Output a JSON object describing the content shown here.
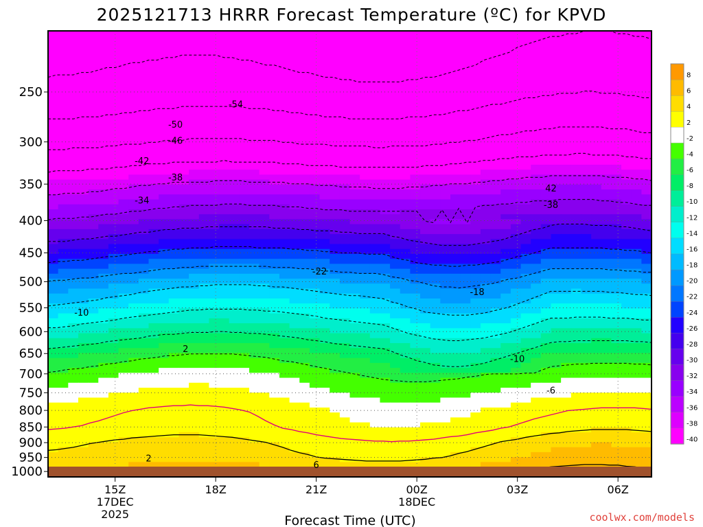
{
  "chart_data": {
    "type": "heatmap",
    "title": "2025121713 HRRR Forecast Temperature (ºC) for KPVD",
    "xlabel": "Forecast Time (UTC)",
    "ylabel": "",
    "credit": "coolwx.com/models",
    "x_ticks": [
      {
        "label": "15Z",
        "sub1": "17DEC",
        "sub2": "2025",
        "hour": 0
      },
      {
        "label": "18Z",
        "sub1": "",
        "sub2": "",
        "hour": 3
      },
      {
        "label": "21Z",
        "sub1": "",
        "sub2": "",
        "hour": 6
      },
      {
        "label": "00Z",
        "sub1": "18DEC",
        "sub2": "",
        "hour": 9
      },
      {
        "label": "03Z",
        "sub1": "",
        "sub2": "",
        "hour": 12
      },
      {
        "label": "06Z",
        "sub1": "",
        "sub2": "",
        "hour": 15
      }
    ],
    "xlim_hours": [
      -2,
      16
    ],
    "y_levels_hpa": [
      250,
      300,
      350,
      400,
      450,
      500,
      550,
      600,
      650,
      700,
      750,
      800,
      850,
      900,
      950,
      1000
    ],
    "ylim_hpa": [
      200,
      1020
    ],
    "ylog": true,
    "legend_position": "right",
    "colorbar_levels": [
      8,
      6,
      4,
      2,
      -2,
      -4,
      -6,
      -8,
      -10,
      -12,
      -14,
      -16,
      -18,
      -20,
      -22,
      -24,
      -26,
      -28,
      -30,
      -32,
      -34,
      -36,
      -38,
      -40
    ],
    "colorbar_colors": [
      "#ff9900",
      "#ffbb00",
      "#ffdd00",
      "#ffff00",
      "#ffffff",
      "#44ff00",
      "#22ee44",
      "#00ee66",
      "#00ee99",
      "#00eecc",
      "#00ffee",
      "#00ddff",
      "#00bbff",
      "#0099ff",
      "#0077ff",
      "#0044ff",
      "#2200ff",
      "#4400ee",
      "#6600ee",
      "#8800ee",
      "#9900ff",
      "#bb00ff",
      "#dd00ff",
      "#ff00ff"
    ],
    "ground_color": "#a0522d",
    "profile": {
      "description_hpa_to_temp": [
        [
          1000,
          5
        ],
        [
          950,
          3
        ],
        [
          900,
          2
        ],
        [
          850,
          0
        ],
        [
          800,
          -1
        ],
        [
          750,
          -3
        ],
        [
          700,
          -5
        ],
        [
          650,
          -8
        ],
        [
          600,
          -12
        ],
        [
          550,
          -16
        ],
        [
          500,
          -20
        ],
        [
          450,
          -26
        ],
        [
          400,
          -32
        ],
        [
          350,
          -38
        ],
        [
          300,
          -46
        ],
        [
          250,
          -52
        ],
        [
          200,
          -56
        ]
      ]
    },
    "contour_labels": [
      {
        "text": "-54",
        "hour": 3.6,
        "hpa": 262
      },
      {
        "text": "-50",
        "hour": 1.8,
        "hpa": 282
      },
      {
        "text": "-46",
        "hour": 1.8,
        "hpa": 299
      },
      {
        "text": "-42",
        "hour": 0.8,
        "hpa": 322
      },
      {
        "text": "-38",
        "hour": 1.8,
        "hpa": 342
      },
      {
        "text": "-34",
        "hour": 0.8,
        "hpa": 372
      },
      {
        "text": "-22",
        "hour": 6.1,
        "hpa": 482
      },
      {
        "text": "-18",
        "hour": 10.8,
        "hpa": 520
      },
      {
        "text": "-10",
        "hour": -1.0,
        "hpa": 560
      },
      {
        "text": "-10",
        "hour": 12.0,
        "hpa": 664
      },
      {
        "text": "-6",
        "hour": 13.0,
        "hpa": 745
      },
      {
        "text": "42",
        "hour": 13.0,
        "hpa": 356
      },
      {
        "text": "-38",
        "hour": 13.0,
        "hpa": 378
      },
      {
        "text": "2",
        "hour": 2.1,
        "hpa": 640
      },
      {
        "text": "2",
        "hour": 1.0,
        "hpa": 955
      },
      {
        "text": "6",
        "hour": 6.0,
        "hpa": 978
      }
    ]
  }
}
